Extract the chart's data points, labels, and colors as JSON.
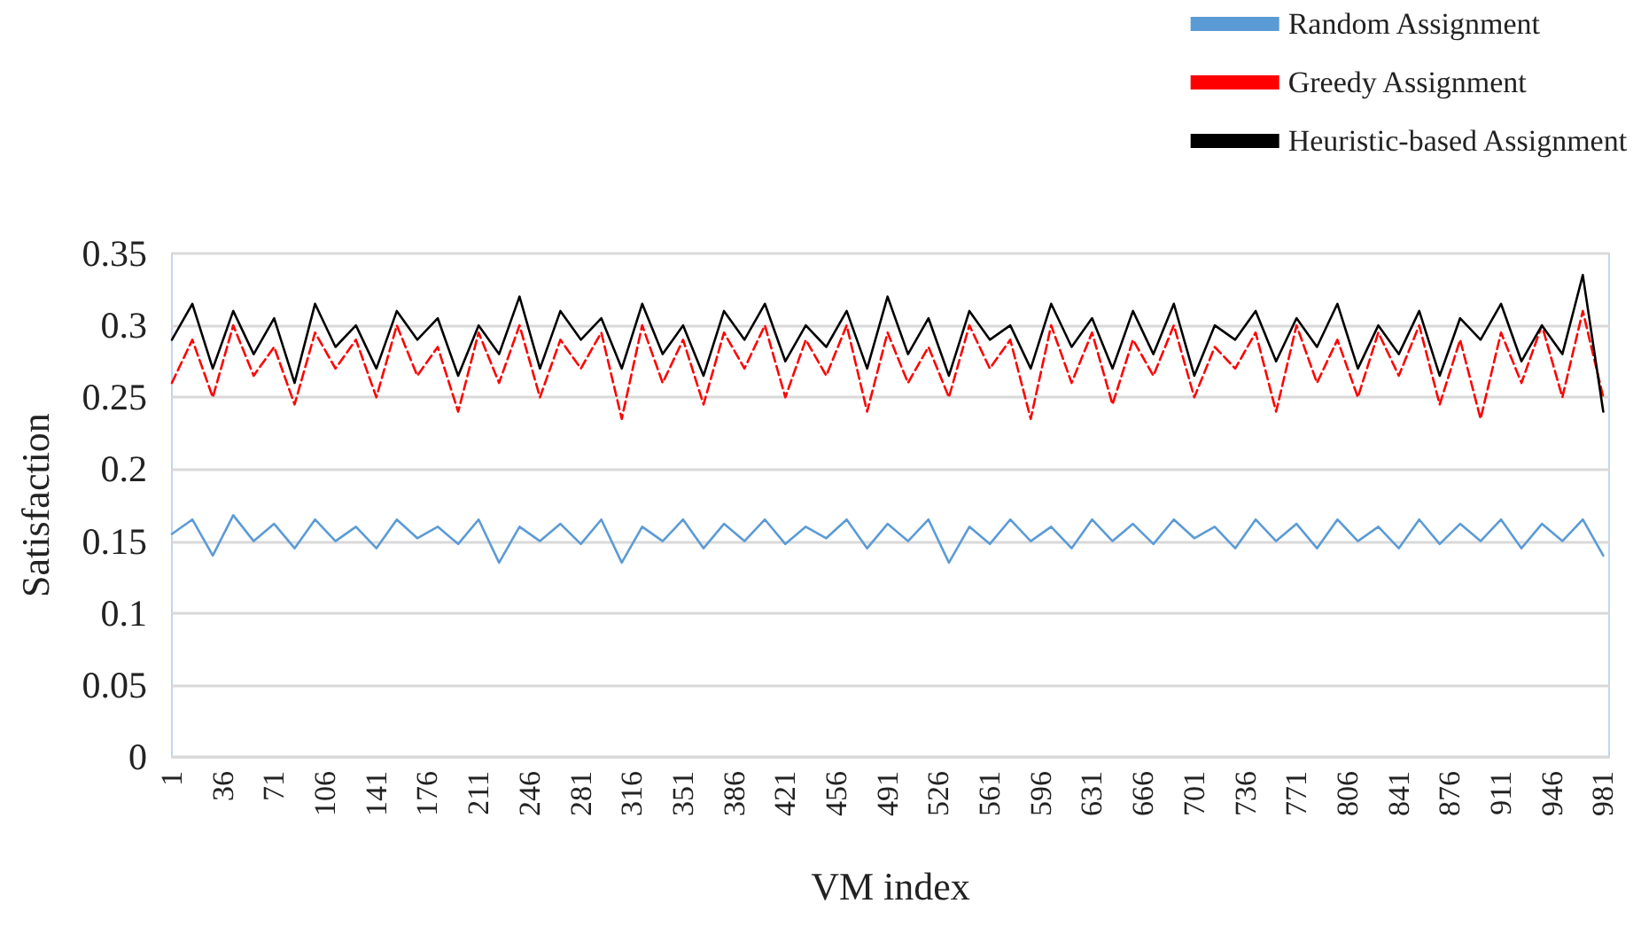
{
  "chart_data": {
    "type": "line",
    "xlabel": "VM index",
    "ylabel": "Satisfaction",
    "x": [
      1,
      15,
      29,
      43,
      57,
      71,
      85,
      99,
      113,
      127,
      141,
      155,
      169,
      183,
      197,
      211,
      225,
      239,
      253,
      267,
      281,
      295,
      309,
      323,
      337,
      351,
      365,
      379,
      393,
      407,
      421,
      435,
      449,
      463,
      477,
      491,
      505,
      519,
      533,
      547,
      561,
      575,
      589,
      603,
      617,
      631,
      645,
      659,
      673,
      687,
      701,
      715,
      729,
      743,
      757,
      771,
      785,
      799,
      813,
      827,
      841,
      855,
      869,
      883,
      897,
      911,
      925,
      939,
      953,
      967,
      981
    ],
    "xlim": [
      1,
      985
    ],
    "xticks": [
      1,
      36,
      71,
      106,
      141,
      176,
      211,
      246,
      281,
      316,
      351,
      386,
      421,
      456,
      491,
      526,
      561,
      596,
      631,
      666,
      701,
      736,
      771,
      806,
      841,
      876,
      911,
      946,
      981
    ],
    "ylim": [
      0,
      0.35
    ],
    "yticks": [
      0,
      0.05,
      0.1,
      0.15,
      0.2,
      0.25,
      0.3,
      0.35
    ],
    "grid": "y",
    "legend": "top right",
    "marker": "none",
    "series": [
      {
        "name": "Random Assignment",
        "color": "#5b9bd5",
        "line_style": "solid",
        "values": [
          0.155,
          0.165,
          0.14,
          0.168,
          0.15,
          0.162,
          0.145,
          0.165,
          0.15,
          0.16,
          0.145,
          0.165,
          0.152,
          0.16,
          0.148,
          0.165,
          0.135,
          0.16,
          0.15,
          0.162,
          0.148,
          0.165,
          0.135,
          0.16,
          0.15,
          0.165,
          0.145,
          0.162,
          0.15,
          0.165,
          0.148,
          0.16,
          0.152,
          0.165,
          0.145,
          0.162,
          0.15,
          0.165,
          0.135,
          0.16,
          0.148,
          0.165,
          0.15,
          0.16,
          0.145,
          0.165,
          0.15,
          0.162,
          0.148,
          0.165,
          0.152,
          0.16,
          0.145,
          0.165,
          0.15,
          0.162,
          0.145,
          0.165,
          0.15,
          0.16,
          0.145,
          0.165,
          0.148,
          0.162,
          0.15,
          0.165,
          0.145,
          0.162,
          0.15,
          0.165,
          0.14
        ]
      },
      {
        "name": "Greedy Assignment",
        "color": "#ff0000",
        "line_style": "dashed",
        "values": [
          0.26,
          0.29,
          0.25,
          0.3,
          0.265,
          0.285,
          0.245,
          0.295,
          0.27,
          0.29,
          0.25,
          0.3,
          0.265,
          0.285,
          0.24,
          0.295,
          0.26,
          0.3,
          0.25,
          0.29,
          0.27,
          0.295,
          0.235,
          0.3,
          0.26,
          0.29,
          0.245,
          0.295,
          0.27,
          0.3,
          0.25,
          0.29,
          0.265,
          0.3,
          0.24,
          0.295,
          0.26,
          0.285,
          0.25,
          0.3,
          0.27,
          0.29,
          0.235,
          0.3,
          0.26,
          0.295,
          0.245,
          0.29,
          0.265,
          0.3,
          0.25,
          0.285,
          0.27,
          0.295,
          0.24,
          0.3,
          0.26,
          0.29,
          0.25,
          0.295,
          0.265,
          0.3,
          0.245,
          0.29,
          0.235,
          0.295,
          0.26,
          0.3,
          0.25,
          0.31,
          0.25
        ]
      },
      {
        "name": "Heuristic-based Assignment",
        "color": "#000000",
        "line_style": "solid",
        "values": [
          0.29,
          0.315,
          0.27,
          0.31,
          0.28,
          0.305,
          0.26,
          0.315,
          0.285,
          0.3,
          0.27,
          0.31,
          0.29,
          0.305,
          0.265,
          0.3,
          0.28,
          0.32,
          0.27,
          0.31,
          0.29,
          0.305,
          0.27,
          0.315,
          0.28,
          0.3,
          0.265,
          0.31,
          0.29,
          0.315,
          0.275,
          0.3,
          0.285,
          0.31,
          0.27,
          0.32,
          0.28,
          0.305,
          0.265,
          0.31,
          0.29,
          0.3,
          0.27,
          0.315,
          0.285,
          0.305,
          0.27,
          0.31,
          0.28,
          0.315,
          0.265,
          0.3,
          0.29,
          0.31,
          0.275,
          0.305,
          0.285,
          0.315,
          0.27,
          0.3,
          0.28,
          0.31,
          0.265,
          0.305,
          0.29,
          0.315,
          0.275,
          0.3,
          0.28,
          0.335,
          0.24
        ]
      }
    ]
  }
}
